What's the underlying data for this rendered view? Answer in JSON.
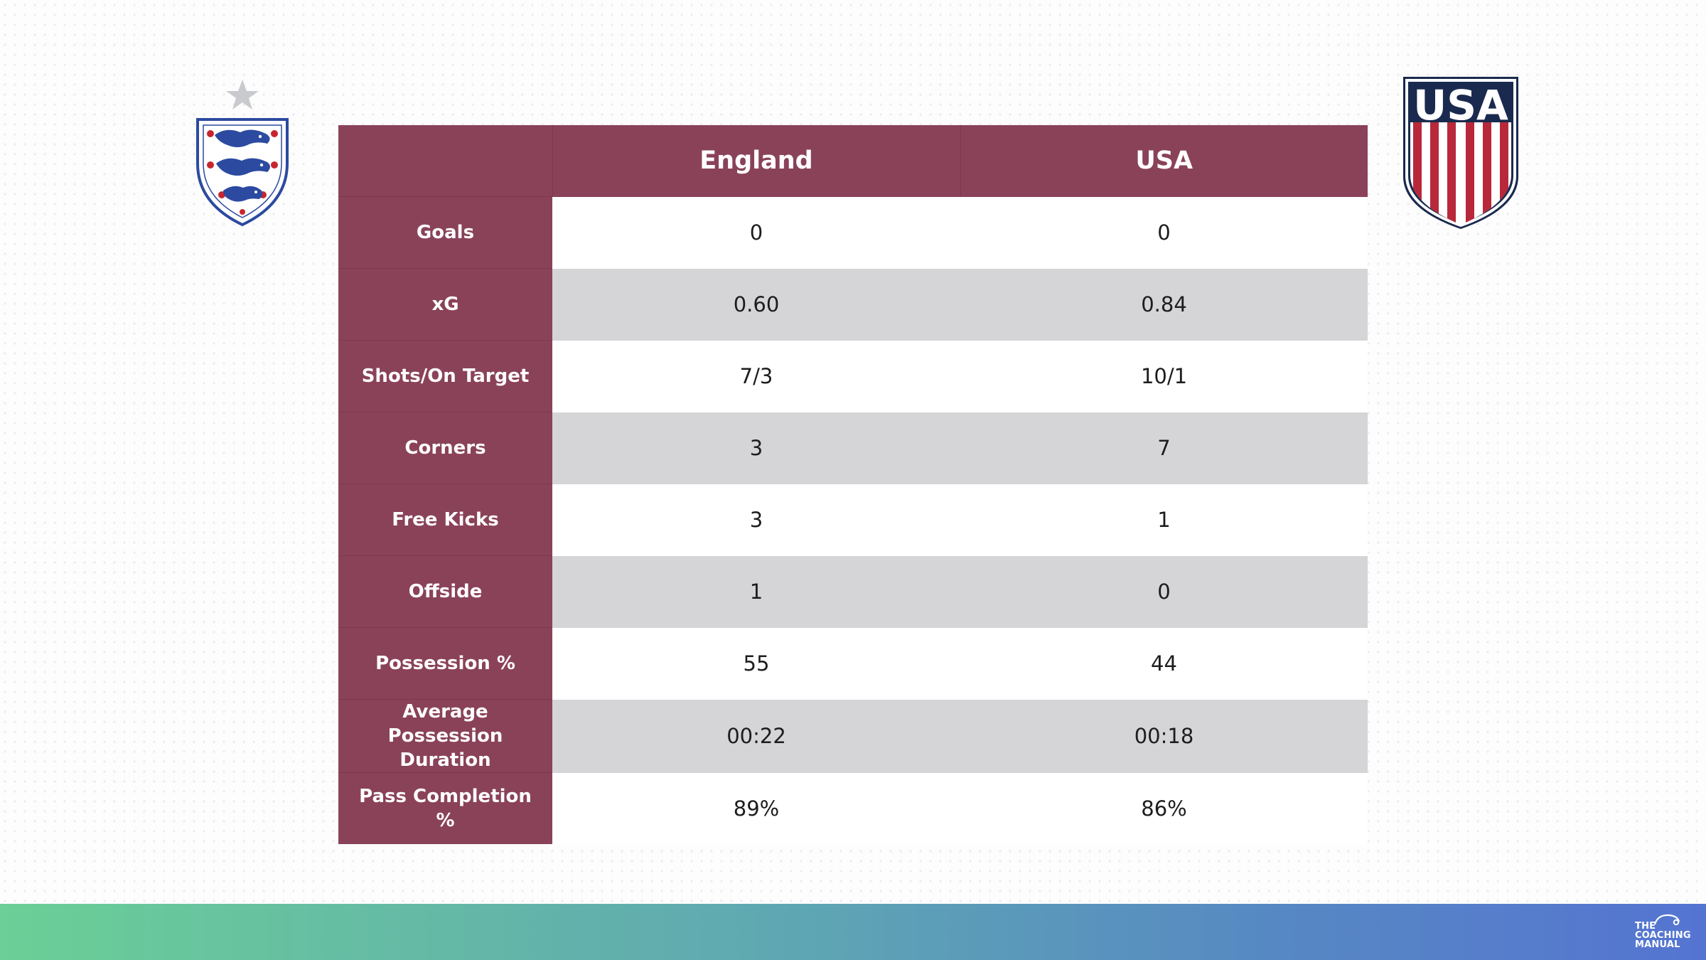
{
  "table": {
    "corner_label": "",
    "columns": [
      "England",
      "USA"
    ],
    "rows": [
      {
        "label": "Goals",
        "england": "0",
        "usa": "0"
      },
      {
        "label": "xG",
        "england": "0.60",
        "usa": "0.84"
      },
      {
        "label": "Shots/On Target",
        "england": "7/3",
        "usa": "10/1"
      },
      {
        "label": "Corners",
        "england": "3",
        "usa": "7"
      },
      {
        "label": "Free Kicks",
        "england": "3",
        "usa": "1"
      },
      {
        "label": "Offside",
        "england": "1",
        "usa": "0"
      },
      {
        "label": "Possession %",
        "england": "55",
        "usa": "44"
      },
      {
        "label": "Average Possession Duration",
        "england": "00:22",
        "usa": "00:18"
      },
      {
        "label": "Pass Completion %",
        "england": "89%",
        "usa": "86%"
      }
    ]
  },
  "crests": {
    "england_icon": "england-three-lions-crest",
    "usa_icon": "usa-soccer-crest",
    "usa_text": "USA"
  },
  "branding": {
    "logo_line1": "THE",
    "logo_line2": "COACHING",
    "logo_line3": "MANUAL"
  },
  "colors": {
    "header_bg": "#8a4259",
    "row_alt_bg": "#d5d5d8",
    "usa_navy": "#1a2a4e",
    "usa_red": "#b8283a",
    "england_blue": "#2c4aa0",
    "gradient_start": "#6bcf96",
    "gradient_end": "#5574d2"
  }
}
